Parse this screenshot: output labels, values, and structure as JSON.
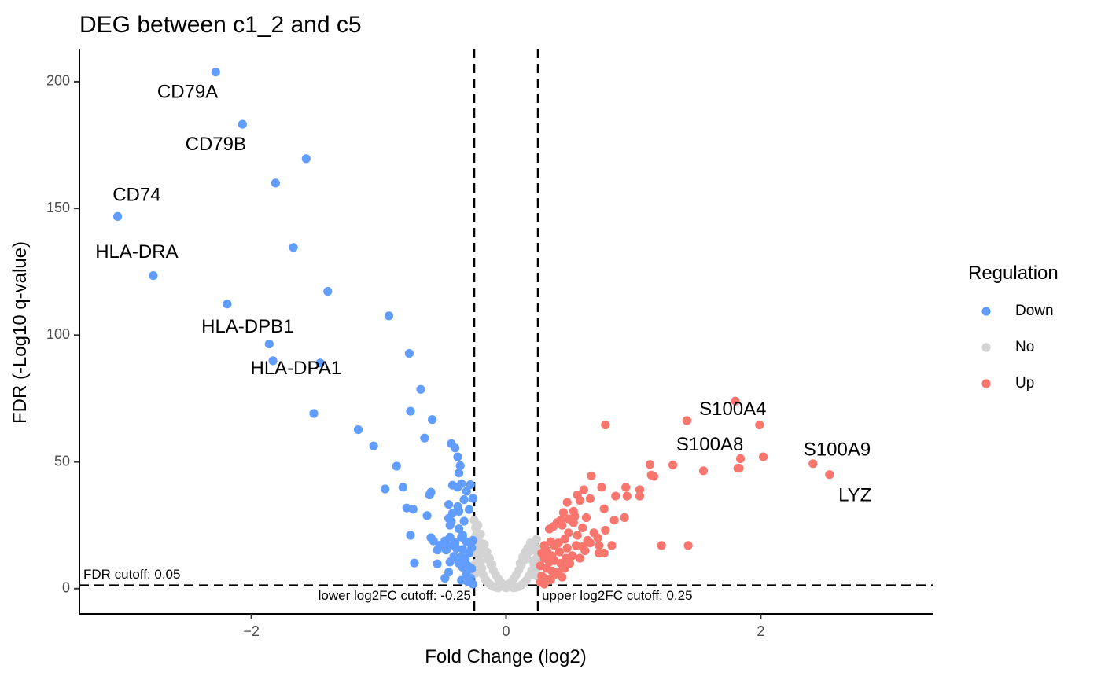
{
  "chart_data": {
    "type": "scatter",
    "title": "DEG between c1_2 and c5",
    "xlabel": "Fold Change (log2)",
    "ylabel": "FDR (-Log10 q-value)",
    "xlim": [
      -3.35,
      3.35
    ],
    "ylim": [
      -10,
      213
    ],
    "x_ticks": [
      -2,
      0,
      2
    ],
    "y_ticks": [
      0,
      50,
      100,
      150,
      200
    ],
    "grid": false,
    "legend": {
      "title": "Regulation",
      "position": "right",
      "entries": [
        {
          "label": "Down",
          "color": "#619CFF"
        },
        {
          "label": "No",
          "color": "#D3D3D3"
        },
        {
          "label": "Up",
          "color": "#F8766D"
        }
      ]
    },
    "cutoffs": {
      "fdr": 1.3,
      "lower_log2fc": -0.25,
      "upper_log2fc": 0.25,
      "fdr_label": "FDR cutoff: 0.05",
      "lower_label": "lower log2FC cutoff: -0.25",
      "upper_label": "upper log2FC cutoff: 0.25"
    },
    "labeled_genes": [
      {
        "name": "CD79A",
        "x": -2.28,
        "y": 203.8,
        "lx": -2.5,
        "ly": 195.5
      },
      {
        "name": "CD79B",
        "x": -2.07,
        "y": 183.2,
        "lx": -2.28,
        "ly": 175.0
      },
      {
        "name": "CD74",
        "x": -3.05,
        "y": 146.8,
        "lx": -2.9,
        "ly": 155.0
      },
      {
        "name": "HLA-DRA",
        "x": -2.77,
        "y": 123.5,
        "lx": -2.9,
        "ly": 132.5
      },
      {
        "name": "HLA-DPB1",
        "x": -2.19,
        "y": 112.3,
        "lx": -2.03,
        "ly": 103.0
      },
      {
        "name": "HLA-DPA1",
        "x": -1.83,
        "y": 89.9,
        "lx": -1.65,
        "ly": 86.5
      },
      {
        "name": "S100A4",
        "x": 1.42,
        "y": 66.3,
        "lx": 1.78,
        "ly": 70.5
      },
      {
        "name": "S100A8",
        "x": 1.82,
        "y": 47.5,
        "lx": 1.6,
        "ly": 56.5
      },
      {
        "name": "S100A9",
        "x": 2.41,
        "y": 49.3,
        "lx": 2.6,
        "ly": 54.5
      },
      {
        "name": "LYZ",
        "x": 2.54,
        "y": 45.0,
        "lx": 2.74,
        "ly": 36.5
      }
    ],
    "series": [
      {
        "name": "Down",
        "color": "#619CFF",
        "points": [
          [
            -1.57,
            169.6
          ],
          [
            -1.81,
            160.0
          ],
          [
            -1.67,
            134.6
          ],
          [
            -1.4,
            117.3
          ],
          [
            -0.92,
            107.6
          ],
          [
            -1.86,
            96.5
          ],
          [
            -0.76,
            92.8
          ],
          [
            -1.46,
            89.0
          ],
          [
            -0.67,
            78.6
          ],
          [
            -0.75,
            70.0
          ],
          [
            -1.51,
            69.1
          ],
          [
            -0.58,
            66.7
          ],
          [
            -1.16,
            62.7
          ],
          [
            -0.64,
            59.4
          ],
          [
            -1.04,
            56.3
          ],
          [
            -0.43,
            57.2
          ],
          [
            -0.4,
            55.5
          ],
          [
            -0.38,
            52.0
          ],
          [
            -0.36,
            48.5
          ],
          [
            -0.37,
            45.6
          ],
          [
            -0.86,
            48.3
          ],
          [
            -0.42,
            40.8
          ],
          [
            -0.35,
            41.4
          ],
          [
            -0.28,
            41.0
          ],
          [
            -0.81,
            40.0
          ],
          [
            -0.31,
            38.4
          ],
          [
            -0.38,
            40.0
          ],
          [
            -0.59,
            38.0
          ],
          [
            -0.6,
            37.0
          ],
          [
            -0.95,
            39.3
          ],
          [
            -0.33,
            35.1
          ],
          [
            -0.26,
            35.6
          ],
          [
            -0.45,
            33.2
          ],
          [
            -0.38,
            32.4
          ],
          [
            -0.37,
            30.5
          ],
          [
            -0.78,
            31.8
          ],
          [
            -0.73,
            31.3
          ],
          [
            -0.29,
            31.2
          ],
          [
            -0.62,
            28.8
          ],
          [
            -0.42,
            29.8
          ],
          [
            -0.45,
            27.7
          ],
          [
            -0.33,
            26.6
          ],
          [
            -0.43,
            26.5
          ],
          [
            -0.44,
            25.0
          ],
          [
            -0.37,
            23.6
          ],
          [
            -0.34,
            21.0
          ],
          [
            -0.75,
            21.0
          ],
          [
            -0.59,
            20.1
          ],
          [
            -0.44,
            20.3
          ],
          [
            -0.35,
            20.3
          ],
          [
            -0.57,
            18.8
          ],
          [
            -0.48,
            18.8
          ],
          [
            -0.4,
            18.1
          ],
          [
            -0.31,
            18.5
          ],
          [
            -0.26,
            19.0
          ],
          [
            -0.52,
            17.1
          ],
          [
            -0.45,
            16.8
          ],
          [
            -0.39,
            15.9
          ],
          [
            -0.27,
            16.1
          ],
          [
            -0.54,
            15.2
          ],
          [
            -0.47,
            15.2
          ],
          [
            -0.34,
            15.5
          ],
          [
            -0.29,
            14.0
          ],
          [
            -0.35,
            12.5
          ],
          [
            -0.41,
            12.7
          ],
          [
            -0.32,
            11.7
          ],
          [
            -0.44,
            10.5
          ],
          [
            -0.37,
            10.0
          ],
          [
            -0.3,
            9.0
          ],
          [
            -0.34,
            8.4
          ],
          [
            -0.27,
            7.9
          ],
          [
            -0.72,
            10.1
          ],
          [
            -0.54,
            9.8
          ],
          [
            -0.45,
            6.5
          ],
          [
            -0.31,
            5.6
          ],
          [
            -0.28,
            4.2
          ],
          [
            -0.35,
            3.3
          ],
          [
            -0.3,
            2.7
          ],
          [
            -0.48,
            4.1
          ],
          [
            -0.26,
            1.8
          ]
        ]
      },
      {
        "name": "No",
        "color": "#D3D3D3",
        "points": [
          [
            -0.25,
            27.0
          ],
          [
            -0.24,
            24.0
          ],
          [
            -0.23,
            22.0
          ],
          [
            -0.22,
            20.0
          ],
          [
            -0.2,
            18.0
          ],
          [
            -0.18,
            16.0
          ],
          [
            -0.16,
            13.8
          ],
          [
            -0.14,
            11.6
          ],
          [
            -0.12,
            9.3
          ],
          [
            -0.1,
            7.2
          ],
          [
            -0.08,
            5.4
          ],
          [
            -0.06,
            3.8
          ],
          [
            -0.04,
            2.5
          ],
          [
            -0.02,
            1.6
          ],
          [
            0.0,
            1.2
          ],
          [
            0.02,
            1.7
          ],
          [
            0.04,
            2.6
          ],
          [
            0.06,
            3.9
          ],
          [
            0.08,
            5.5
          ],
          [
            0.1,
            7.3
          ],
          [
            0.12,
            9.2
          ],
          [
            0.14,
            11.2
          ],
          [
            0.16,
            13.0
          ],
          [
            0.18,
            14.6
          ],
          [
            0.2,
            16.5
          ],
          [
            0.22,
            18.0
          ],
          [
            0.24,
            19.5
          ],
          [
            -0.24,
            20.5
          ],
          [
            -0.23,
            18.0
          ],
          [
            -0.22,
            15.5
          ],
          [
            -0.21,
            13.0
          ],
          [
            -0.2,
            10.5
          ],
          [
            -0.19,
            8.0
          ],
          [
            -0.18,
            5.5
          ],
          [
            -0.16,
            3.5
          ],
          [
            -0.14,
            2.2
          ],
          [
            -0.12,
            1.4
          ],
          [
            -0.1,
            0.8
          ],
          [
            -0.08,
            0.5
          ],
          [
            -0.06,
            0.3
          ],
          [
            0.06,
            0.3
          ],
          [
            0.08,
            0.5
          ],
          [
            0.1,
            0.8
          ],
          [
            0.12,
            1.4
          ],
          [
            0.14,
            2.2
          ],
          [
            0.16,
            3.3
          ],
          [
            0.18,
            5.0
          ],
          [
            0.2,
            7.0
          ],
          [
            0.22,
            9.5
          ],
          [
            0.24,
            12.0
          ],
          [
            0.23,
            15.0
          ],
          [
            0.21,
            11.0
          ],
          [
            -0.22,
            25.0
          ],
          [
            -0.2,
            21.5
          ],
          [
            -0.17,
            17.5
          ],
          [
            -0.15,
            14.5
          ],
          [
            -0.13,
            12.0
          ],
          [
            -0.11,
            9.5
          ],
          [
            0.11,
            10.0
          ],
          [
            0.13,
            12.5
          ],
          [
            0.15,
            14.5
          ],
          [
            0.17,
            16.0
          ],
          [
            0.19,
            18.0
          ],
          [
            -0.24,
            6.0
          ],
          [
            -0.24,
            10.0
          ],
          [
            -0.24,
            14.0
          ],
          [
            0.24,
            5.0
          ],
          [
            0.24,
            8.0
          ],
          [
            0.24,
            16.0
          ],
          [
            -0.05,
            0.8
          ],
          [
            0.05,
            0.9
          ],
          [
            0.0,
            0.3
          ]
        ]
      },
      {
        "name": "Up",
        "color": "#F8766D",
        "points": [
          [
            1.8,
            74.0
          ],
          [
            1.99,
            64.6
          ],
          [
            0.78,
            64.6
          ],
          [
            2.02,
            52.0
          ],
          [
            1.84,
            51.3
          ],
          [
            1.31,
            48.8
          ],
          [
            1.13,
            49.0
          ],
          [
            1.83,
            47.5
          ],
          [
            1.55,
            46.5
          ],
          [
            1.14,
            44.8
          ],
          [
            0.67,
            44.5
          ],
          [
            1.16,
            44.3
          ],
          [
            0.94,
            40.0
          ],
          [
            0.75,
            40.0
          ],
          [
            1.05,
            39.0
          ],
          [
            0.61,
            39.0
          ],
          [
            0.56,
            37.0
          ],
          [
            0.86,
            36.5
          ],
          [
            0.95,
            36.5
          ],
          [
            1.05,
            36.5
          ],
          [
            0.66,
            35.5
          ],
          [
            0.58,
            34.8
          ],
          [
            0.48,
            34.0
          ],
          [
            0.77,
            31.5
          ],
          [
            0.53,
            30.5
          ],
          [
            0.45,
            30.0
          ],
          [
            0.63,
            28.0
          ],
          [
            0.93,
            28.0
          ],
          [
            0.85,
            27.0
          ],
          [
            0.54,
            28.5
          ],
          [
            0.49,
            27.5
          ],
          [
            0.43,
            27.0
          ],
          [
            0.4,
            26.0
          ],
          [
            0.37,
            24.5
          ],
          [
            0.34,
            23.5
          ],
          [
            0.44,
            25.0
          ],
          [
            0.53,
            26.0
          ],
          [
            0.6,
            24.0
          ],
          [
            0.69,
            22.0
          ],
          [
            0.72,
            20.0
          ],
          [
            0.78,
            23.0
          ],
          [
            0.64,
            19.0
          ],
          [
            0.56,
            21.0
          ],
          [
            0.49,
            22.0
          ],
          [
            0.46,
            19.5
          ],
          [
            0.41,
            18.0
          ],
          [
            0.38,
            17.0
          ],
          [
            0.35,
            18.5
          ],
          [
            0.3,
            17.0
          ],
          [
            0.28,
            14.0
          ],
          [
            0.32,
            15.0
          ],
          [
            0.36,
            13.0
          ],
          [
            0.42,
            14.5
          ],
          [
            0.48,
            16.0
          ],
          [
            0.55,
            17.0
          ],
          [
            0.6,
            16.5
          ],
          [
            0.66,
            18.0
          ],
          [
            0.73,
            17.0
          ],
          [
            0.77,
            14.0
          ],
          [
            0.73,
            14.0
          ],
          [
            0.83,
            17.0
          ],
          [
            1.22,
            17.0
          ],
          [
            1.43,
            17.0
          ],
          [
            0.3,
            12.0
          ],
          [
            0.34,
            10.5
          ],
          [
            0.38,
            11.0
          ],
          [
            0.43,
            10.0
          ],
          [
            0.47,
            12.0
          ],
          [
            0.52,
            13.0
          ],
          [
            0.58,
            12.0
          ],
          [
            0.27,
            9.0
          ],
          [
            0.32,
            8.0
          ],
          [
            0.36,
            7.0
          ],
          [
            0.41,
            6.5
          ],
          [
            0.46,
            8.0
          ],
          [
            0.28,
            5.0
          ],
          [
            0.31,
            4.0
          ],
          [
            0.35,
            3.5
          ],
          [
            0.27,
            2.5
          ],
          [
            0.3,
            1.8
          ],
          [
            0.38,
            5.5
          ],
          [
            0.5,
            10.0
          ],
          [
            0.44,
            4.5
          ],
          [
            0.62,
            15.0
          ]
        ]
      }
    ]
  }
}
